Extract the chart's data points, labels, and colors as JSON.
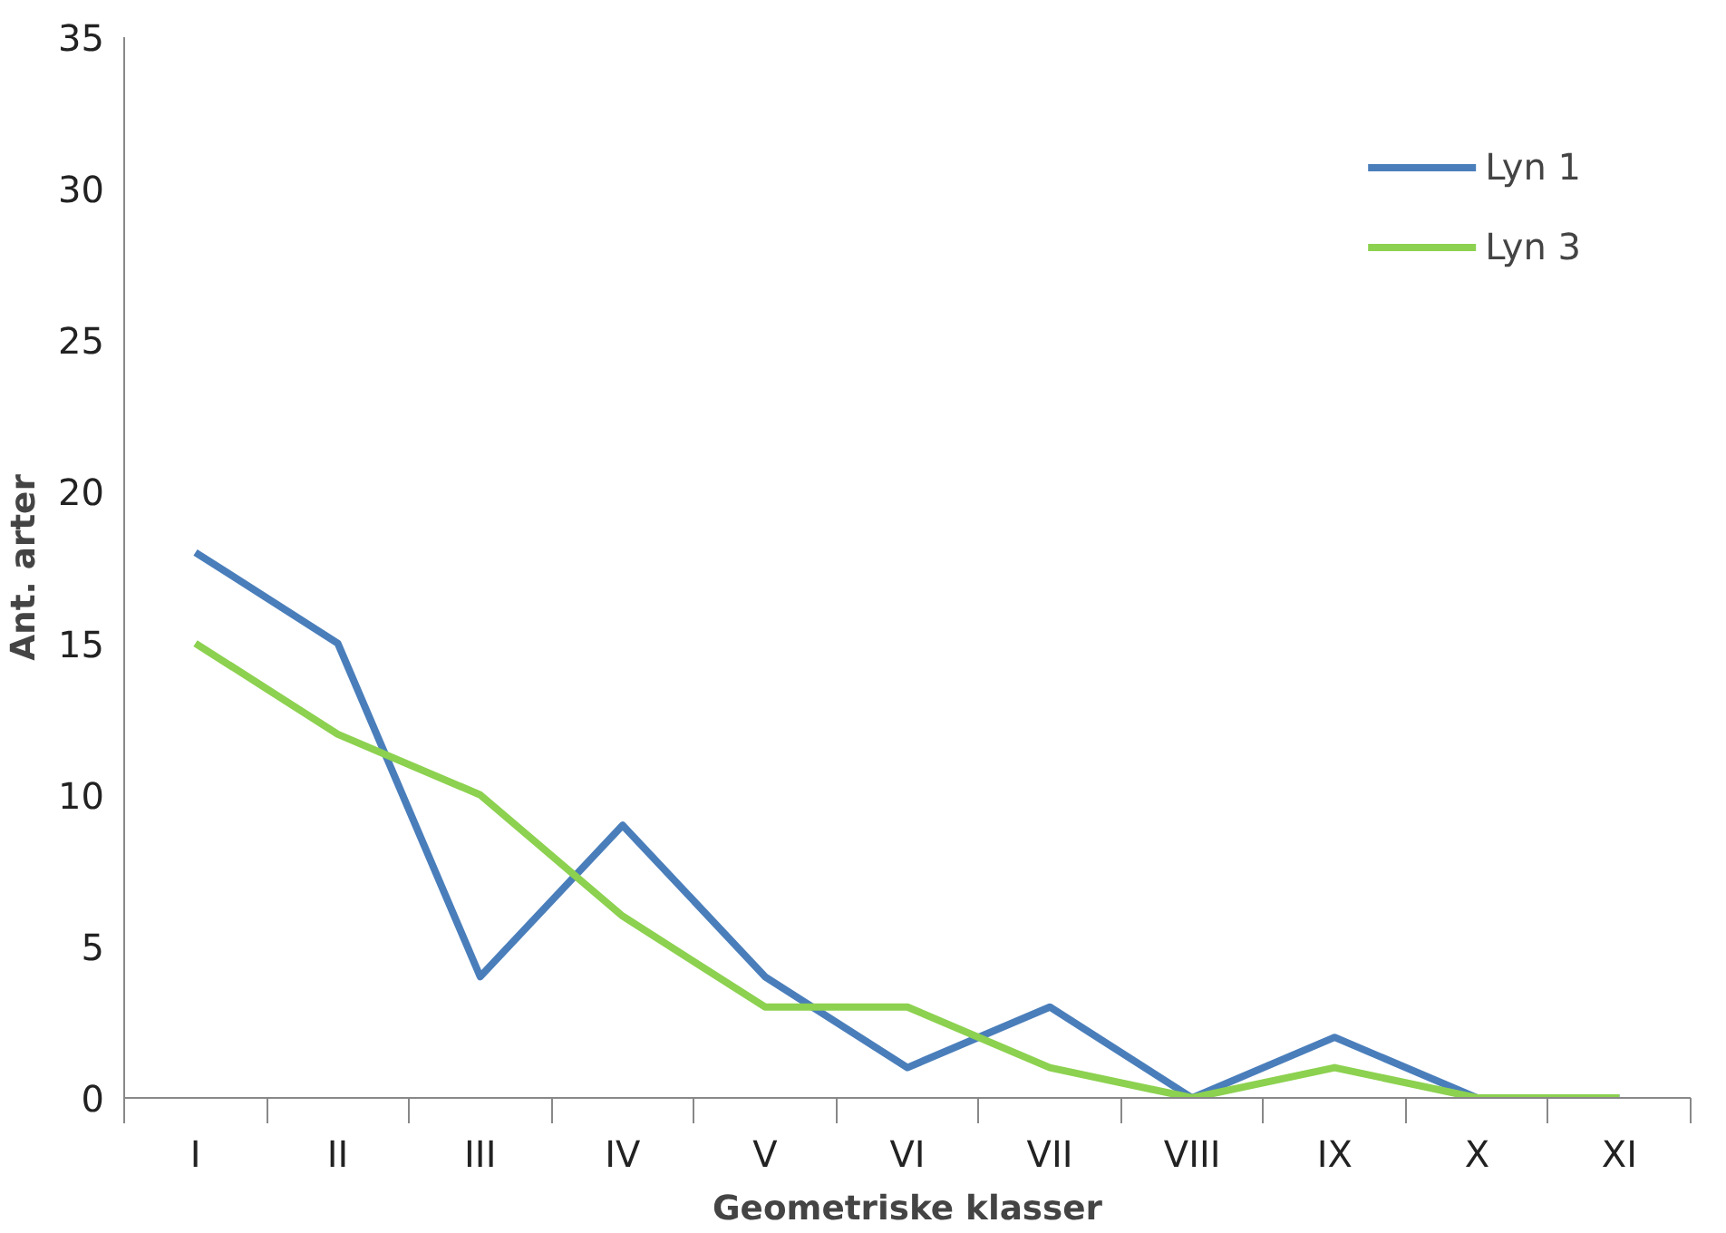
{
  "chart_data": {
    "type": "line",
    "xlabel": "Geometriske klasser",
    "ylabel": "Ant. arter",
    "categories": [
      "I",
      "II",
      "III",
      "IV",
      "V",
      "VI",
      "VII",
      "VIII",
      "IX",
      "X",
      "XI"
    ],
    "series": [
      {
        "name": "Lyn 1",
        "color": "#4a7ebb",
        "values": [
          18,
          15,
          4,
          9,
          4,
          1,
          3,
          0,
          2,
          0,
          0
        ]
      },
      {
        "name": "Lyn 3",
        "color": "#8cd14f",
        "values": [
          15,
          12,
          10,
          6,
          3,
          3,
          1,
          0,
          1,
          0,
          0
        ]
      }
    ],
    "ylim": [
      0,
      35
    ],
    "yticks": [
      0,
      5,
      10,
      15,
      20,
      25,
      30,
      35
    ],
    "grid": false,
    "legend": "top right",
    "marker": "none",
    "line_style": "solid"
  }
}
